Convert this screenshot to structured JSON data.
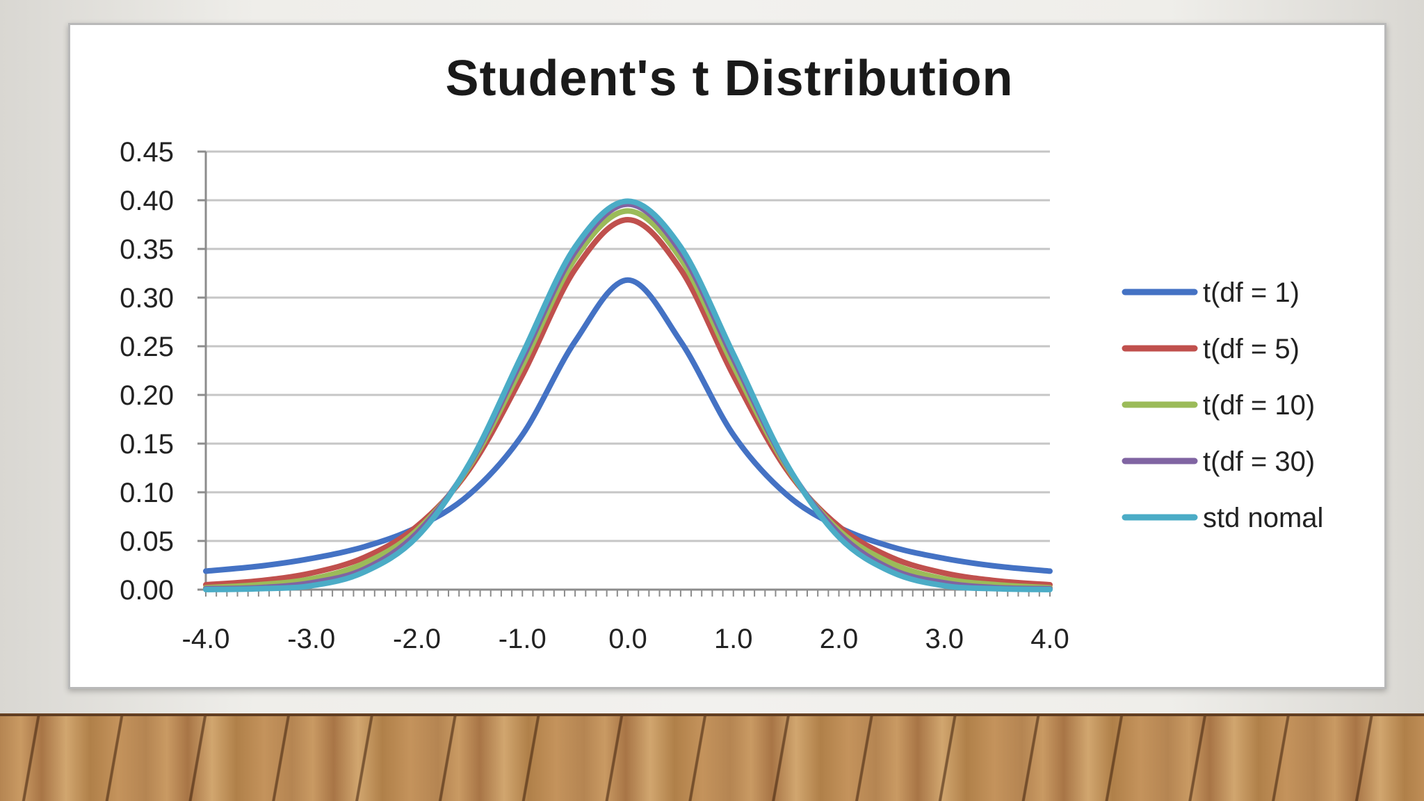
{
  "chart_data": {
    "type": "line",
    "title": "Student's t Distribution",
    "xlabel": "",
    "ylabel": "",
    "xlim": [
      -4.0,
      4.0
    ],
    "ylim": [
      0.0,
      0.45
    ],
    "x_tick_labels": [
      "-4.0",
      "-3.0",
      "-2.0",
      "-1.0",
      "0.0",
      "1.0",
      "2.0",
      "3.0",
      "4.0"
    ],
    "y_tick_labels": [
      "0.00",
      "0.05",
      "0.10",
      "0.15",
      "0.20",
      "0.25",
      "0.30",
      "0.35",
      "0.40",
      "0.45"
    ],
    "grid": "horizontal",
    "legend_position": "right",
    "x": [
      -4.0,
      -3.5,
      -3.0,
      -2.5,
      -2.0,
      -1.5,
      -1.0,
      -0.5,
      0.0,
      0.5,
      1.0,
      1.5,
      2.0,
      2.5,
      3.0,
      3.5,
      4.0
    ],
    "series": [
      {
        "name": "t(df = 1)",
        "color": "#4472c4",
        "values": [
          0.019,
          0.024,
          0.032,
          0.044,
          0.064,
          0.098,
          0.159,
          0.255,
          0.318,
          0.255,
          0.159,
          0.098,
          0.064,
          0.044,
          0.032,
          0.024,
          0.019
        ]
      },
      {
        "name": "t(df = 5)",
        "color": "#c0504d",
        "values": [
          0.005,
          0.009,
          0.017,
          0.033,
          0.065,
          0.124,
          0.22,
          0.329,
          0.38,
          0.329,
          0.22,
          0.124,
          0.065,
          0.033,
          0.017,
          0.009,
          0.005
        ]
      },
      {
        "name": "t(df = 10)",
        "color": "#9bbb59",
        "values": [
          0.002,
          0.005,
          0.011,
          0.027,
          0.061,
          0.127,
          0.23,
          0.34,
          0.389,
          0.34,
          0.23,
          0.127,
          0.061,
          0.027,
          0.011,
          0.005,
          0.002
        ]
      },
      {
        "name": "t(df = 30)",
        "color": "#8064a2",
        "values": [
          0.001,
          0.002,
          0.007,
          0.021,
          0.058,
          0.129,
          0.237,
          0.347,
          0.396,
          0.347,
          0.237,
          0.129,
          0.058,
          0.021,
          0.007,
          0.002,
          0.001
        ]
      },
      {
        "name": "std nomal",
        "color": "#4bacc6",
        "values": [
          0.0001,
          0.0009,
          0.004,
          0.018,
          0.054,
          0.13,
          0.242,
          0.352,
          0.399,
          0.352,
          0.242,
          0.13,
          0.054,
          0.018,
          0.004,
          0.0009,
          0.0001
        ]
      }
    ]
  }
}
